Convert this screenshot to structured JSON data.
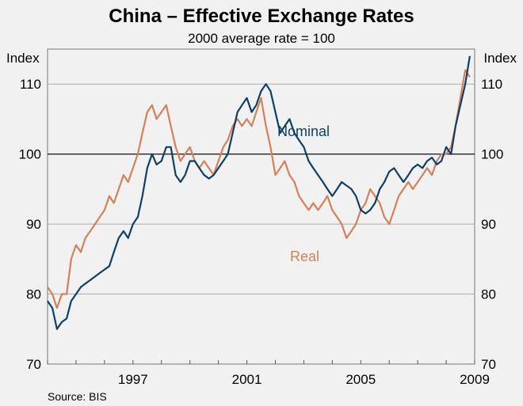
{
  "chart_data": {
    "type": "line",
    "title": "China – Effective Exchange Rates",
    "subtitle": "2000 average rate = 100",
    "ylabel_left": "Index",
    "ylabel_right": "Index",
    "ylim": [
      70,
      115
    ],
    "yticks": [
      70,
      80,
      90,
      100,
      110
    ],
    "xlim": [
      1994.0,
      2009.0
    ],
    "xticks": [
      1997,
      2001,
      2005,
      2009
    ],
    "source": "Source: BIS",
    "colors": {
      "nominal": "#0e3f66",
      "real": "#d4805a",
      "grid": "#aaaaaa",
      "baseline": "#222222"
    },
    "series": [
      {
        "name": "Nominal",
        "color": "#0e3f66",
        "label_pos": "upper-middle",
        "x": [
          1994.0,
          1994.17,
          1994.33,
          1994.5,
          1994.67,
          1994.83,
          1995.0,
          1995.17,
          1995.33,
          1995.5,
          1995.67,
          1995.83,
          1996.0,
          1996.17,
          1996.33,
          1996.5,
          1996.67,
          1996.83,
          1997.0,
          1997.17,
          1997.33,
          1997.5,
          1997.67,
          1997.83,
          1998.0,
          1998.17,
          1998.33,
          1998.5,
          1998.67,
          1998.83,
          1999.0,
          1999.17,
          1999.33,
          1999.5,
          1999.67,
          1999.83,
          2000.0,
          2000.17,
          2000.33,
          2000.5,
          2000.67,
          2000.83,
          2001.0,
          2001.17,
          2001.33,
          2001.5,
          2001.67,
          2001.83,
          2002.0,
          2002.17,
          2002.33,
          2002.5,
          2002.67,
          2002.83,
          2003.0,
          2003.17,
          2003.33,
          2003.5,
          2003.67,
          2003.83,
          2004.0,
          2004.17,
          2004.33,
          2004.5,
          2004.67,
          2004.83,
          2005.0,
          2005.17,
          2005.33,
          2005.5,
          2005.67,
          2005.83,
          2006.0,
          2006.17,
          2006.33,
          2006.5,
          2006.67,
          2006.83,
          2007.0,
          2007.17,
          2007.33,
          2007.5,
          2007.67,
          2007.83,
          2008.0,
          2008.17,
          2008.33,
          2008.5,
          2008.67,
          2008.83
        ],
        "values": [
          79,
          78,
          75,
          76,
          76.5,
          79,
          80,
          81,
          81.5,
          82,
          82.5,
          83,
          83.5,
          84,
          86,
          88,
          89,
          88,
          90,
          91,
          94,
          98,
          100,
          98.5,
          99,
          101,
          101,
          97,
          96,
          97,
          99,
          99,
          98,
          97,
          96.5,
          97,
          98,
          99,
          100,
          103,
          106,
          107,
          108,
          106,
          107,
          109,
          110,
          109,
          106,
          103,
          104,
          105,
          103,
          102,
          101,
          99,
          98,
          97,
          96,
          95,
          94,
          95,
          96,
          95.5,
          95,
          94,
          92,
          91.5,
          92,
          93,
          95,
          96,
          97.5,
          98,
          97,
          96,
          97,
          98,
          98.5,
          98,
          99,
          99.5,
          98.5,
          99,
          101,
          100,
          104,
          107,
          110,
          114
        ]
      },
      {
        "name": "Real",
        "color": "#d4805a",
        "label_pos": "lower-middle",
        "x": [
          1994.0,
          1994.17,
          1994.33,
          1994.5,
          1994.67,
          1994.83,
          1995.0,
          1995.17,
          1995.33,
          1995.5,
          1995.67,
          1995.83,
          1996.0,
          1996.17,
          1996.33,
          1996.5,
          1996.67,
          1996.83,
          1997.0,
          1997.17,
          1997.33,
          1997.5,
          1997.67,
          1997.83,
          1998.0,
          1998.17,
          1998.33,
          1998.5,
          1998.67,
          1998.83,
          1999.0,
          1999.17,
          1999.33,
          1999.5,
          1999.67,
          1999.83,
          2000.0,
          2000.17,
          2000.33,
          2000.5,
          2000.67,
          2000.83,
          2001.0,
          2001.17,
          2001.33,
          2001.5,
          2001.67,
          2001.83,
          2002.0,
          2002.17,
          2002.33,
          2002.5,
          2002.67,
          2002.83,
          2003.0,
          2003.17,
          2003.33,
          2003.5,
          2003.67,
          2003.83,
          2004.0,
          2004.17,
          2004.33,
          2004.5,
          2004.67,
          2004.83,
          2005.0,
          2005.17,
          2005.33,
          2005.5,
          2005.67,
          2005.83,
          2006.0,
          2006.17,
          2006.33,
          2006.5,
          2006.67,
          2006.83,
          2007.0,
          2007.17,
          2007.33,
          2007.5,
          2007.67,
          2007.83,
          2008.0,
          2008.17,
          2008.33,
          2008.5,
          2008.67,
          2008.83
        ],
        "values": [
          81,
          80,
          78,
          80,
          80,
          85,
          87,
          86,
          88,
          89,
          90,
          91,
          92,
          94,
          93,
          95,
          97,
          96,
          98,
          100,
          103,
          106,
          107,
          105,
          106,
          107,
          104,
          101,
          99,
          100,
          101,
          99,
          98,
          99,
          98,
          97,
          99,
          101,
          102,
          104,
          105,
          104,
          105,
          104,
          106,
          108,
          104,
          101,
          97,
          98,
          99,
          97,
          96,
          94,
          93,
          92,
          93,
          92,
          93,
          94,
          92,
          91,
          90,
          88,
          89,
          90,
          92,
          93,
          95,
          94,
          93,
          91,
          90,
          92,
          94,
          95,
          96,
          95,
          96,
          97,
          98,
          97,
          99,
          100,
          100,
          101,
          104,
          108,
          112,
          111
        ]
      }
    ]
  }
}
